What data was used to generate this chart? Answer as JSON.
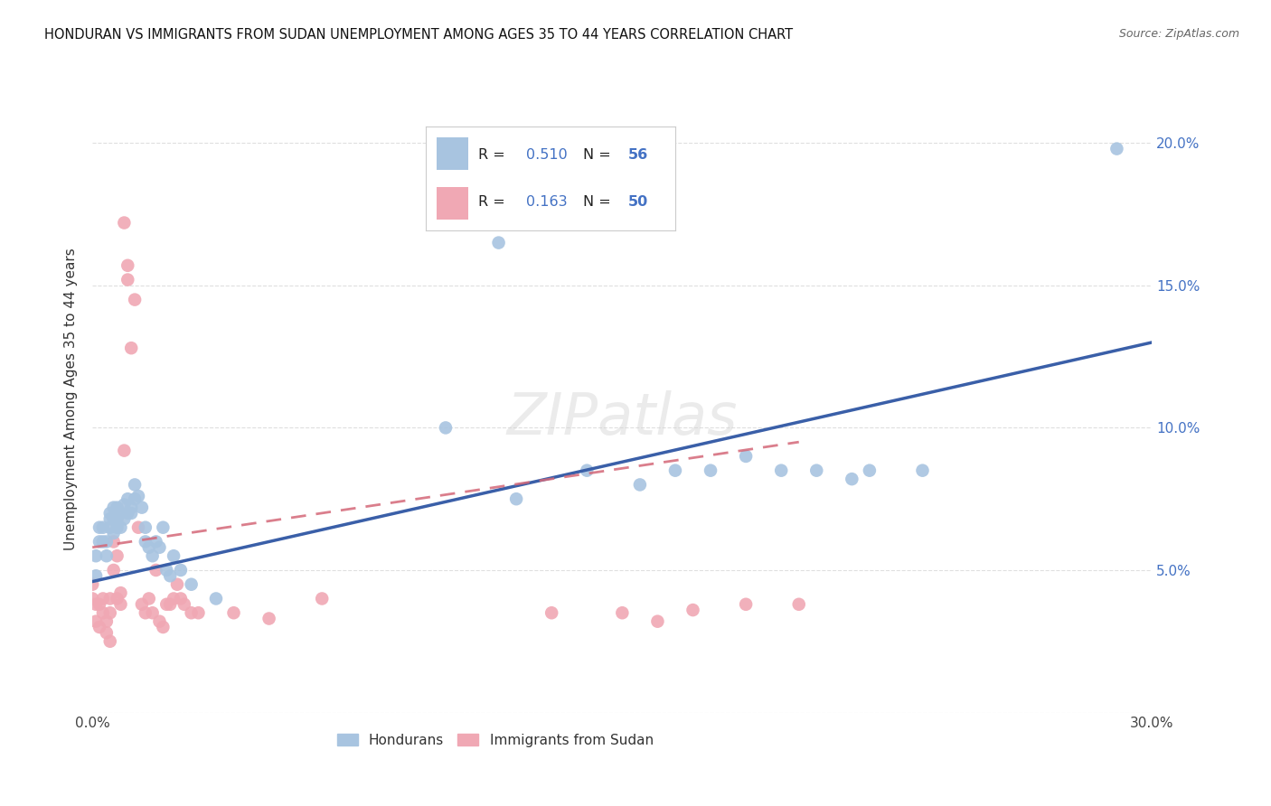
{
  "title": "HONDURAN VS IMMIGRANTS FROM SUDAN UNEMPLOYMENT AMONG AGES 35 TO 44 YEARS CORRELATION CHART",
  "source": "Source: ZipAtlas.com",
  "ylabel": "Unemployment Among Ages 35 to 44 years",
  "xlim": [
    0.0,
    0.3
  ],
  "ylim": [
    0.0,
    0.22
  ],
  "xticks": [
    0.0,
    0.05,
    0.1,
    0.15,
    0.2,
    0.25,
    0.3
  ],
  "xticklabels": [
    "0.0%",
    "",
    "",
    "",
    "",
    "",
    "30.0%"
  ],
  "yticks": [
    0.0,
    0.05,
    0.1,
    0.15,
    0.2
  ],
  "yticklabels_right": [
    "",
    "5.0%",
    "10.0%",
    "15.0%",
    "20.0%"
  ],
  "blue_color": "#a8c4e0",
  "pink_color": "#f0a8b4",
  "blue_line_color": "#3a5fa8",
  "pink_line_color": "#d46878",
  "label_color": "#4472c4",
  "grid_color": "#d8d8d8",
  "blue_R": 0.51,
  "blue_N": 56,
  "pink_R": 0.163,
  "pink_N": 50,
  "hondurans_x": [
    0.001,
    0.001,
    0.002,
    0.002,
    0.003,
    0.003,
    0.004,
    0.004,
    0.005,
    0.005,
    0.005,
    0.006,
    0.006,
    0.006,
    0.007,
    0.007,
    0.007,
    0.008,
    0.008,
    0.009,
    0.009,
    0.01,
    0.01,
    0.011,
    0.011,
    0.012,
    0.012,
    0.013,
    0.014,
    0.015,
    0.015,
    0.016,
    0.017,
    0.018,
    0.019,
    0.02,
    0.021,
    0.022,
    0.023,
    0.025,
    0.028,
    0.035,
    0.1,
    0.115,
    0.12,
    0.14,
    0.155,
    0.165,
    0.175,
    0.185,
    0.195,
    0.205,
    0.215,
    0.22,
    0.235,
    0.29
  ],
  "hondurans_y": [
    0.048,
    0.055,
    0.06,
    0.065,
    0.06,
    0.065,
    0.06,
    0.055,
    0.065,
    0.07,
    0.068,
    0.063,
    0.068,
    0.072,
    0.065,
    0.068,
    0.072,
    0.065,
    0.07,
    0.068,
    0.073,
    0.07,
    0.075,
    0.07,
    0.072,
    0.075,
    0.08,
    0.076,
    0.072,
    0.065,
    0.06,
    0.058,
    0.055,
    0.06,
    0.058,
    0.065,
    0.05,
    0.048,
    0.055,
    0.05,
    0.045,
    0.04,
    0.1,
    0.165,
    0.075,
    0.085,
    0.08,
    0.085,
    0.085,
    0.09,
    0.085,
    0.085,
    0.082,
    0.085,
    0.085,
    0.198
  ],
  "sudan_x": [
    0.0,
    0.0,
    0.001,
    0.001,
    0.002,
    0.002,
    0.003,
    0.003,
    0.004,
    0.004,
    0.005,
    0.005,
    0.005,
    0.006,
    0.006,
    0.007,
    0.007,
    0.008,
    0.008,
    0.009,
    0.009,
    0.01,
    0.01,
    0.011,
    0.012,
    0.013,
    0.014,
    0.015,
    0.016,
    0.017,
    0.018,
    0.019,
    0.02,
    0.021,
    0.022,
    0.023,
    0.024,
    0.025,
    0.026,
    0.028,
    0.03,
    0.04,
    0.05,
    0.065,
    0.13,
    0.15,
    0.16,
    0.17,
    0.185,
    0.2
  ],
  "sudan_y": [
    0.045,
    0.04,
    0.038,
    0.032,
    0.03,
    0.038,
    0.035,
    0.04,
    0.028,
    0.032,
    0.025,
    0.035,
    0.04,
    0.05,
    0.06,
    0.055,
    0.04,
    0.042,
    0.038,
    0.092,
    0.172,
    0.157,
    0.152,
    0.128,
    0.145,
    0.065,
    0.038,
    0.035,
    0.04,
    0.035,
    0.05,
    0.032,
    0.03,
    0.038,
    0.038,
    0.04,
    0.045,
    0.04,
    0.038,
    0.035,
    0.035,
    0.035,
    0.033,
    0.04,
    0.035,
    0.035,
    0.032,
    0.036,
    0.038,
    0.038
  ],
  "blue_line_x": [
    0.0,
    0.3
  ],
  "blue_line_y": [
    0.046,
    0.13
  ],
  "pink_line_x": [
    0.0,
    0.2
  ],
  "pink_line_y": [
    0.058,
    0.095
  ]
}
